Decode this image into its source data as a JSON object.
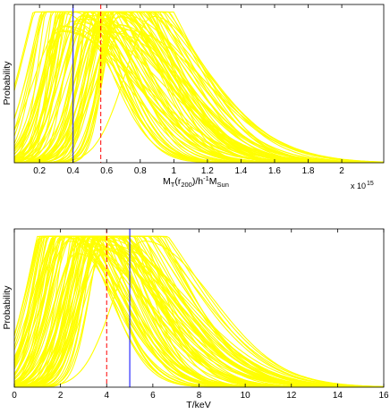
{
  "chart_data": [
    {
      "type": "line",
      "xlabel_base": "M",
      "xlabel_sub1": "T",
      "xlabel_mid1": "(r",
      "xlabel_sub2": "200",
      "xlabel_mid2": ")/h",
      "xlabel_sup": "-1",
      "xlabel_unit": "M",
      "xlabel_sub3": "Sun",
      "ylabel": "Probability",
      "sci_multiplier": "x 10",
      "sci_exponent": "15",
      "xlim": [
        0.05,
        2.25
      ],
      "ylim": [
        0,
        1.05
      ],
      "xticks": [
        0.2,
        0.4,
        0.6,
        0.8,
        1,
        1.2,
        1.4,
        1.6,
        1.8,
        2
      ],
      "xtick_labels": [
        "0.2",
        "0.4",
        "0.6",
        "0.8",
        "1",
        "1.2",
        "1.4",
        "1.6",
        "1.8",
        "2"
      ],
      "grid": false,
      "curve_color": "#ffff00",
      "curve_count": 80,
      "curves": {
        "peak_range": [
          0.28,
          0.72
        ],
        "left_spread": [
          0.08,
          0.18
        ],
        "right_spread": [
          0.22,
          0.5
        ],
        "flat_top_level": 1.0
      },
      "outlier_curve": {
        "peak": 0.88,
        "left_spread": 0.17,
        "right_spread": 0.32
      },
      "markers": [
        {
          "name": "blue-solid",
          "x": 0.4,
          "color": "#0000ff",
          "style": "solid"
        },
        {
          "name": "red-dashed",
          "x": 0.565,
          "color": "#ff0000",
          "style": "dashed"
        }
      ]
    },
    {
      "type": "line",
      "xlabel": "T/keV",
      "ylabel": "Probability",
      "xlim": [
        0,
        16
      ],
      "ylim": [
        0,
        1.05
      ],
      "xticks": [
        0,
        2,
        4,
        6,
        8,
        10,
        12,
        14,
        16
      ],
      "xtick_labels": [
        "0",
        "2",
        "4",
        "6",
        "8",
        "10",
        "12",
        "14",
        "16"
      ],
      "grid": false,
      "curve_color": "#ffff00",
      "curve_count": 80,
      "curves": {
        "peak_range": [
          1.8,
          4.2
        ],
        "left_spread": [
          0.7,
          1.3
        ],
        "right_spread": [
          1.6,
          3.6
        ],
        "flat_top_level": 1.0
      },
      "outlier_curve": {
        "peak": 5.6,
        "left_spread": 1.3,
        "right_spread": 3.0
      },
      "markers": [
        {
          "name": "red-dashed",
          "x": 4.0,
          "color": "#ff0000",
          "style": "dashed"
        },
        {
          "name": "blue-solid",
          "x": 5.0,
          "color": "#0000ff",
          "style": "solid"
        }
      ]
    }
  ]
}
